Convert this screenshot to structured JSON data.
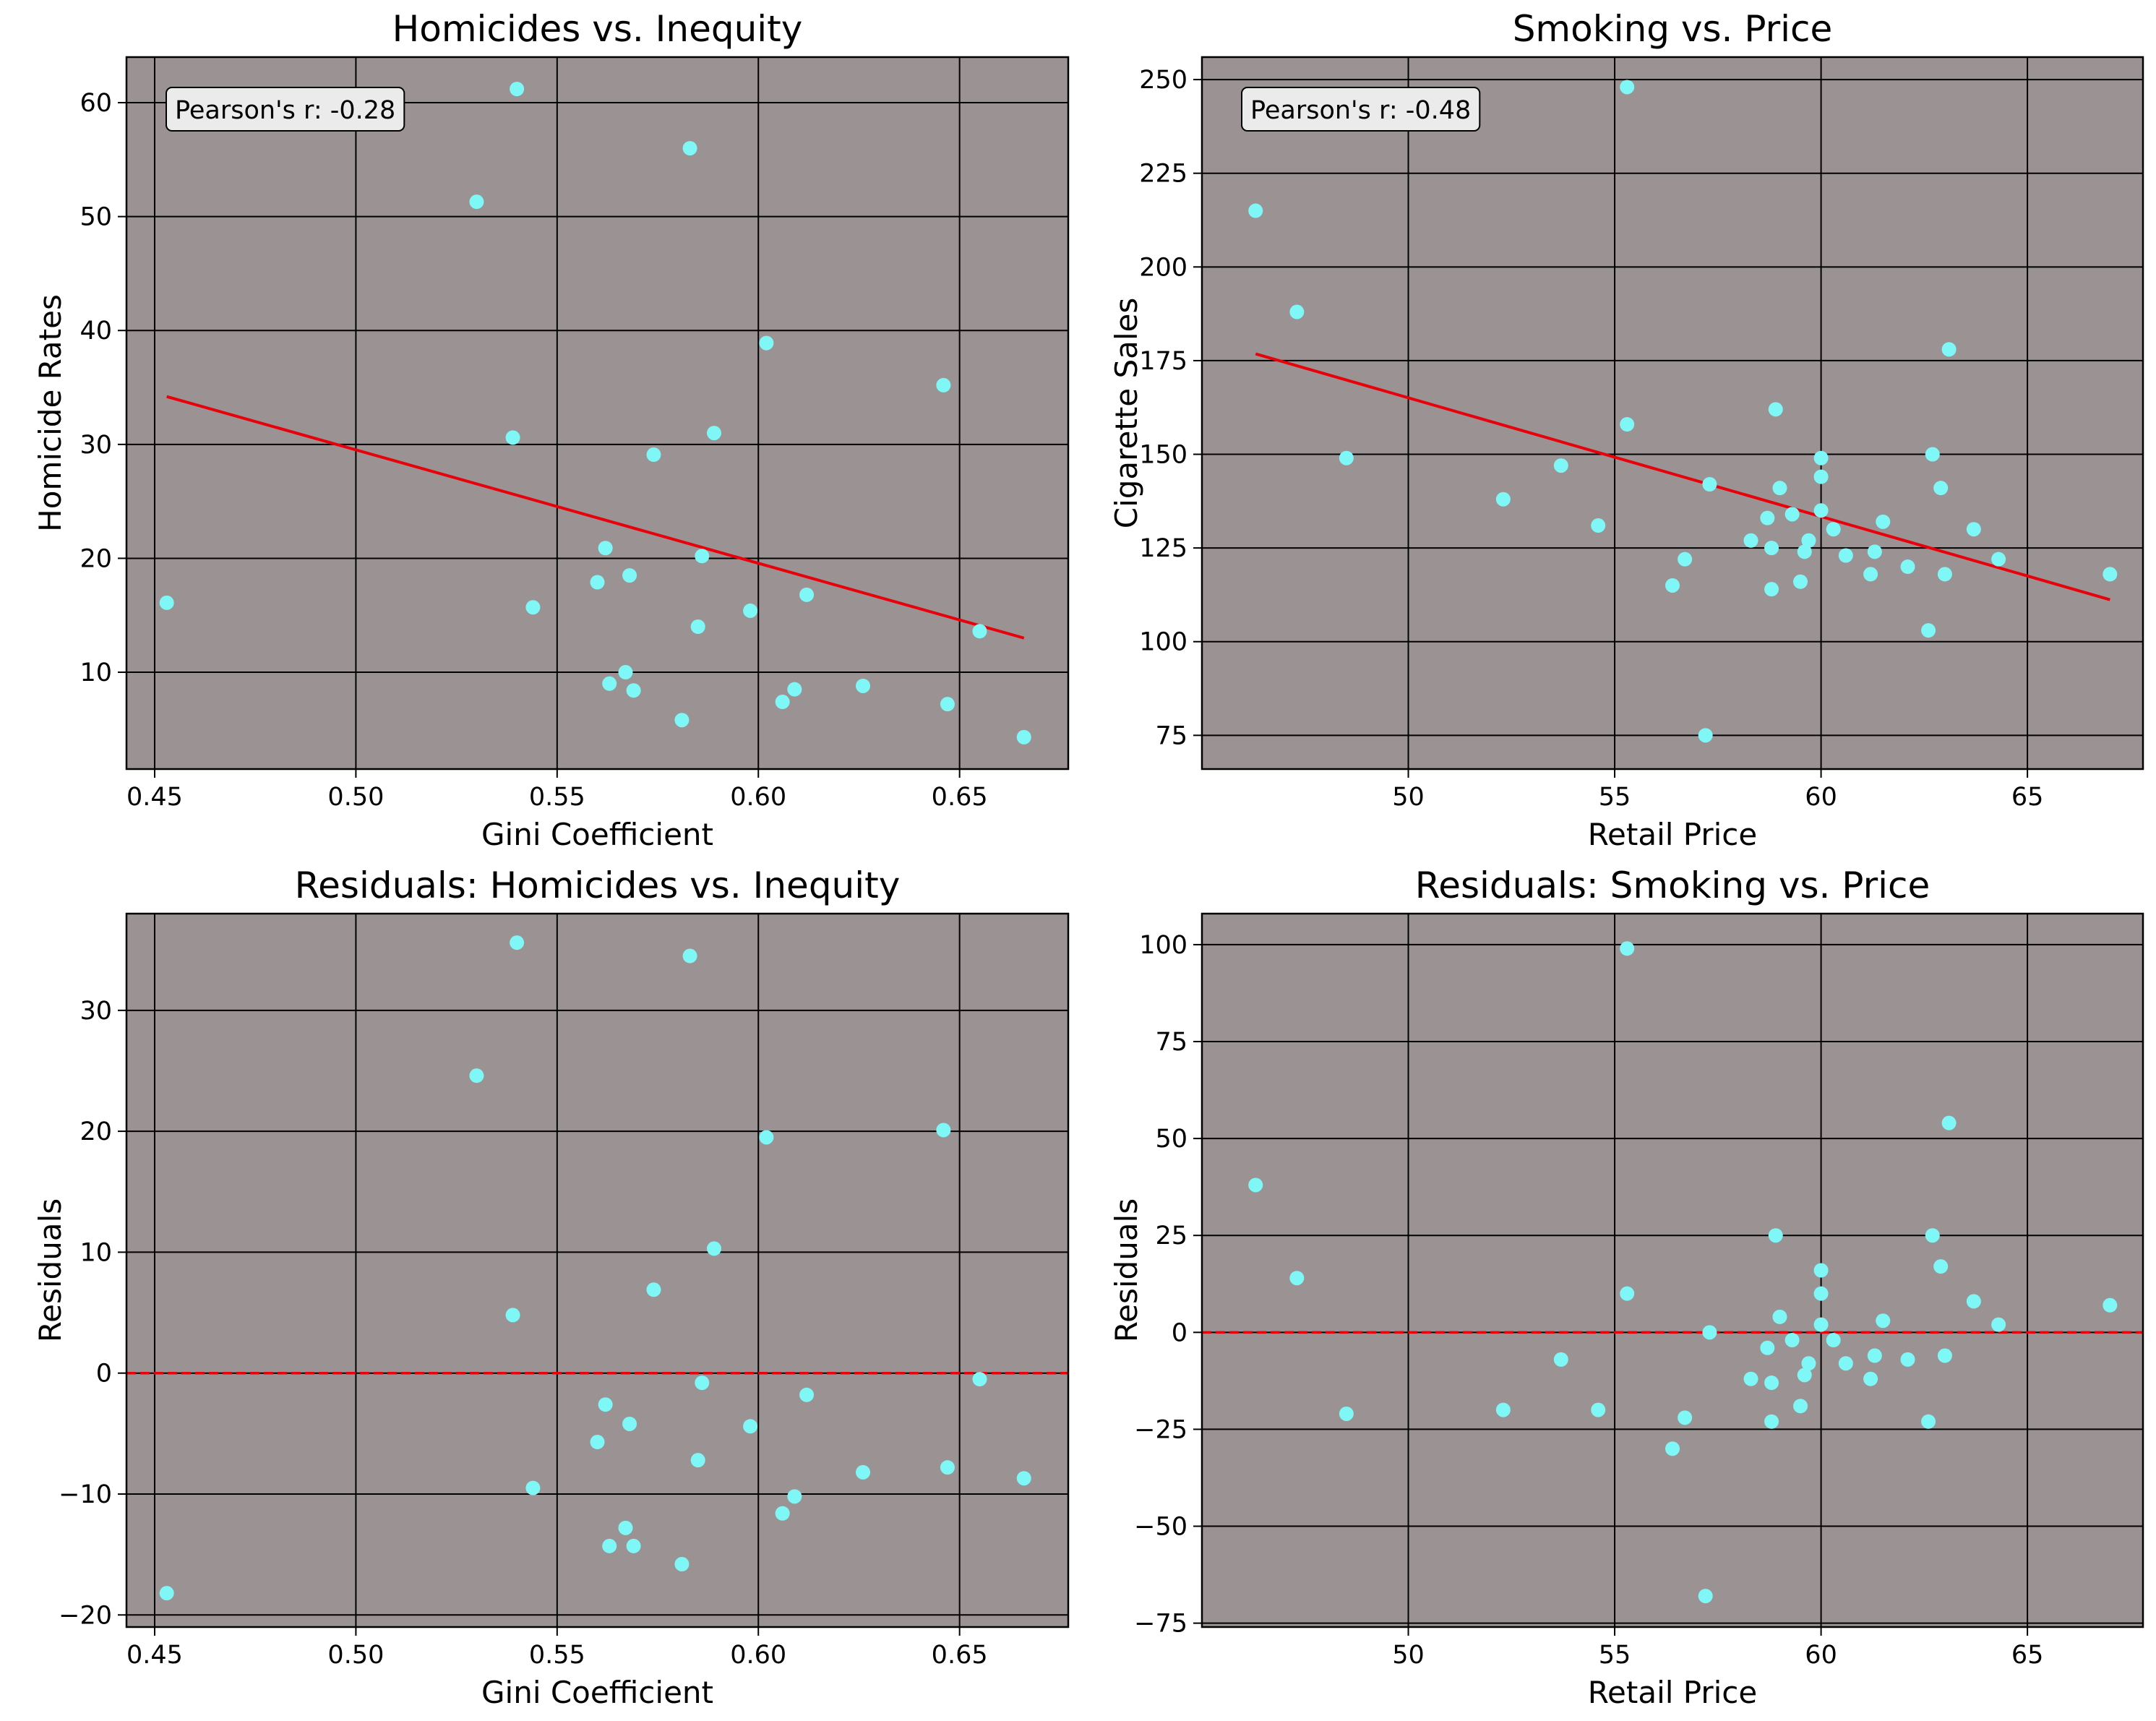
{
  "figure": {
    "plot_background": "#9b9393",
    "point_color": "#7ff7f7",
    "line_color": "#e8000b",
    "grid_color": "#000000"
  },
  "chart_data": [
    {
      "id": "p1",
      "type": "scatter",
      "title": "Homicides vs. Inequity",
      "xlabel": "Gini Coefficient",
      "ylabel": "Homicide Rates",
      "xlim": [
        0.443,
        0.677
      ],
      "ylim": [
        1.5,
        64
      ],
      "xticks": [
        0.45,
        0.5,
        0.55,
        0.6,
        0.65
      ],
      "xtick_labels": [
        "0.45",
        "0.50",
        "0.55",
        "0.60",
        "0.65"
      ],
      "yticks": [
        10,
        20,
        30,
        40,
        50,
        60
      ],
      "ytick_labels": [
        "10",
        "20",
        "30",
        "40",
        "50",
        "60"
      ],
      "grid": true,
      "annotation": "Pearson's r: -0.28",
      "annotation_position": "top-left",
      "fit_line": {
        "x": [
          0.453,
          0.666
        ],
        "y": [
          34.2,
          13.0
        ]
      },
      "zero_line": false,
      "points": {
        "x": [
          0.453,
          0.53,
          0.539,
          0.54,
          0.544,
          0.56,
          0.562,
          0.563,
          0.567,
          0.568,
          0.569,
          0.574,
          0.581,
          0.583,
          0.585,
          0.586,
          0.589,
          0.598,
          0.602,
          0.606,
          0.609,
          0.612,
          0.626,
          0.646,
          0.647,
          0.655,
          0.666
        ],
        "y": [
          16.1,
          51.3,
          30.6,
          61.2,
          15.7,
          17.9,
          20.9,
          9.0,
          10.0,
          18.5,
          8.4,
          29.1,
          5.8,
          56.0,
          14.0,
          20.2,
          31.0,
          15.4,
          38.9,
          7.4,
          8.5,
          16.8,
          8.8,
          35.2,
          7.2,
          13.6,
          4.3
        ]
      }
    },
    {
      "id": "p2",
      "type": "scatter",
      "title": "Smoking vs. Price",
      "xlabel": "Retail Price",
      "ylabel": "Cigarette Sales",
      "xlim": [
        45.0,
        67.8
      ],
      "ylim": [
        66,
        256
      ],
      "xticks": [
        50,
        55,
        60,
        65
      ],
      "xtick_labels": [
        "50",
        "55",
        "60",
        "65"
      ],
      "yticks": [
        75,
        100,
        125,
        150,
        175,
        200,
        225,
        250
      ],
      "ytick_labels": [
        "75",
        "100",
        "125",
        "150",
        "175",
        "200",
        "225",
        "250"
      ],
      "grid": true,
      "annotation": "Pearson's r: -0.48",
      "annotation_position": "top-left",
      "fit_line": {
        "x": [
          46.3,
          67.0
        ],
        "y": [
          176.8,
          111.2
        ]
      },
      "zero_line": false,
      "points": {
        "x": [
          46.3,
          47.3,
          48.5,
          52.3,
          53.7,
          54.6,
          55.3,
          55.3,
          56.4,
          56.7,
          57.2,
          57.3,
          58.3,
          58.7,
          58.8,
          58.8,
          58.9,
          59.0,
          59.3,
          59.5,
          59.6,
          59.7,
          60.0,
          60.0,
          60.0,
          60.3,
          60.6,
          61.2,
          61.3,
          61.5,
          62.1,
          62.6,
          62.7,
          62.9,
          63.0,
          63.1,
          63.7,
          64.3,
          67.0
        ],
        "y": [
          215,
          188,
          149,
          138,
          147,
          131,
          248,
          158,
          115,
          122,
          75,
          142,
          127,
          133,
          114,
          125,
          162,
          141,
          134,
          116,
          124,
          127,
          149,
          144,
          135,
          130,
          123,
          118,
          124,
          132,
          120,
          103,
          150,
          141,
          118,
          178,
          130,
          122,
          118
        ]
      }
    },
    {
      "id": "p3",
      "type": "scatter",
      "title": "Residuals: Homicides vs. Inequity",
      "xlabel": "Gini Coefficient",
      "ylabel": "Residuals",
      "xlim": [
        0.443,
        0.677
      ],
      "ylim": [
        -21,
        38
      ],
      "xticks": [
        0.45,
        0.5,
        0.55,
        0.6,
        0.65
      ],
      "xtick_labels": [
        "0.45",
        "0.50",
        "0.55",
        "0.60",
        "0.65"
      ],
      "yticks": [
        -20,
        -10,
        0,
        10,
        20,
        30
      ],
      "ytick_labels": [
        "−20",
        "−10",
        "0",
        "10",
        "20",
        "30"
      ],
      "grid": true,
      "annotation": "",
      "fit_line": null,
      "zero_line": true,
      "points": {
        "x": [
          0.453,
          0.53,
          0.539,
          0.54,
          0.544,
          0.56,
          0.562,
          0.563,
          0.567,
          0.568,
          0.569,
          0.574,
          0.581,
          0.583,
          0.585,
          0.586,
          0.589,
          0.598,
          0.602,
          0.606,
          0.609,
          0.612,
          0.626,
          0.646,
          0.647,
          0.655,
          0.666
        ],
        "y": [
          -18.2,
          24.6,
          4.8,
          35.6,
          -9.5,
          -5.7,
          -2.6,
          -14.3,
          -12.8,
          -4.2,
          -14.3,
          6.9,
          -15.8,
          34.5,
          -7.2,
          -0.8,
          10.3,
          -4.4,
          19.5,
          -11.6,
          -10.2,
          -1.8,
          -8.2,
          20.1,
          -7.8,
          -0.5,
          -8.7
        ]
      }
    },
    {
      "id": "p4",
      "type": "scatter",
      "title": "Residuals: Smoking vs. Price",
      "xlabel": "Retail Price",
      "ylabel": "Residuals",
      "xlim": [
        45.0,
        67.8
      ],
      "ylim": [
        -76,
        108
      ],
      "xticks": [
        50,
        55,
        60,
        65
      ],
      "xtick_labels": [
        "50",
        "55",
        "60",
        "65"
      ],
      "yticks": [
        -75,
        -50,
        -25,
        0,
        25,
        50,
        75,
        100
      ],
      "ytick_labels": [
        "−75",
        "−50",
        "−25",
        "0",
        "25",
        "50",
        "75",
        "100"
      ],
      "grid": true,
      "annotation": "",
      "fit_line": null,
      "zero_line": true,
      "points": {
        "x": [
          46.3,
          47.3,
          48.5,
          52.3,
          53.7,
          54.6,
          55.3,
          55.3,
          56.4,
          56.7,
          57.2,
          57.3,
          58.3,
          58.7,
          58.8,
          58.8,
          58.9,
          59.0,
          59.3,
          59.5,
          59.6,
          59.7,
          60.0,
          60.0,
          60.0,
          60.3,
          60.6,
          61.2,
          61.3,
          61.5,
          62.1,
          62.6,
          62.7,
          62.9,
          63.0,
          63.1,
          63.7,
          64.3,
          67.0
        ],
        "y": [
          38,
          14,
          -21,
          -20,
          -7,
          -20,
          99,
          10,
          -30,
          -22,
          -68,
          0,
          -12,
          -4,
          -23,
          -13,
          25,
          4,
          -2,
          -19,
          -11,
          -8,
          16,
          10,
          2,
          -2,
          -8,
          -12,
          -6,
          3,
          -7,
          -23,
          25,
          17,
          -6,
          54,
          8,
          2,
          7
        ]
      }
    }
  ]
}
